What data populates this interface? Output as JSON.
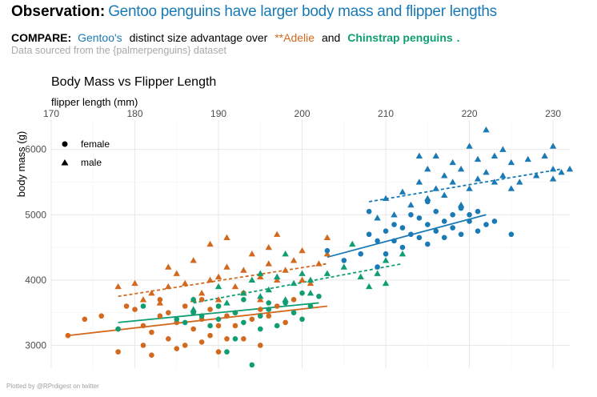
{
  "header": {
    "headline_lead": "Observation:",
    "headline_rest": "Gentoo penguins have larger body mass and flipper lengths",
    "compare_lead": "COMPARE:",
    "compare_gentoo": "Gentoo's",
    "compare_mid": "distinct size advantage over",
    "compare_adelie": "**Adelie",
    "compare_and": "and",
    "compare_chinstrap": "Chinstrap penguins",
    "compare_end": ".",
    "source": "Data sourced from the {palmerpenguins} dataset",
    "caption": "Plotted by @RPrdigest on twitter"
  },
  "colors": {
    "Adelie": "#d2691e",
    "Chinstrap": "#0f9e73",
    "Gentoo": "#1a7ab5"
  },
  "chart_data": {
    "type": "scatter",
    "title": "Body Mass vs Flipper Length",
    "xlabel": "flipper length (mm)",
    "ylabel": "body mass (g)",
    "x_axis_position": "top",
    "xlim": [
      170,
      232
    ],
    "ylim": [
      2650,
      6450
    ],
    "x_ticks": [
      170,
      180,
      190,
      200,
      210,
      220,
      230
    ],
    "y_ticks": [
      3000,
      4000,
      5000,
      6000
    ],
    "grid": true,
    "legend": {
      "placement": "top-left",
      "entries": [
        {
          "label": "female",
          "shape": "circle"
        },
        {
          "label": "male",
          "shape": "triangle"
        }
      ]
    },
    "trend_lines": [
      {
        "species": "Adelie",
        "sex": "female",
        "style": "solid",
        "x": [
          172,
          203
        ],
        "y": [
          3150,
          3600
        ]
      },
      {
        "species": "Adelie",
        "sex": "male",
        "style": "dashed",
        "x": [
          178,
          203
        ],
        "y": [
          3750,
          4250
        ]
      },
      {
        "species": "Chinstrap",
        "sex": "female",
        "style": "solid",
        "x": [
          178,
          202
        ],
        "y": [
          3350,
          3650
        ]
      },
      {
        "species": "Chinstrap",
        "sex": "male",
        "style": "dashed",
        "x": [
          187,
          212
        ],
        "y": [
          3650,
          4250
        ]
      },
      {
        "species": "Gentoo",
        "sex": "female",
        "style": "solid",
        "x": [
          203,
          222
        ],
        "y": [
          4350,
          5000
        ]
      },
      {
        "species": "Gentoo",
        "sex": "male",
        "style": "dashed",
        "x": [
          208,
          231
        ],
        "y": [
          5200,
          5700
        ]
      }
    ],
    "series": [
      {
        "species": "Adelie",
        "sex": "female",
        "points": [
          [
            172,
            3150
          ],
          [
            174,
            3400
          ],
          [
            176,
            3450
          ],
          [
            178,
            3250
          ],
          [
            178,
            2900
          ],
          [
            179,
            3600
          ],
          [
            180,
            3550
          ],
          [
            181,
            3000
          ],
          [
            181,
            3300
          ],
          [
            182,
            3200
          ],
          [
            182,
            2850
          ],
          [
            183,
            3450
          ],
          [
            183,
            3700
          ],
          [
            184,
            3100
          ],
          [
            184,
            3500
          ],
          [
            185,
            3350
          ],
          [
            185,
            2950
          ],
          [
            186,
            3600
          ],
          [
            186,
            3000
          ],
          [
            187,
            3250
          ],
          [
            187,
            3500
          ],
          [
            188,
            3050
          ],
          [
            188,
            3400
          ],
          [
            188,
            3700
          ],
          [
            189,
            3150
          ],
          [
            189,
            3550
          ],
          [
            190,
            3300
          ],
          [
            190,
            2900
          ],
          [
            190,
            3600
          ],
          [
            191,
            3450
          ],
          [
            191,
            3100
          ],
          [
            192,
            3300
          ],
          [
            192,
            3500
          ],
          [
            193,
            3100
          ],
          [
            193,
            3800
          ],
          [
            194,
            3400
          ],
          [
            195,
            3000
          ],
          [
            195,
            3550
          ],
          [
            196,
            3450
          ],
          [
            197,
            3600
          ],
          [
            198,
            3350
          ],
          [
            199,
            3700
          ]
        ]
      },
      {
        "species": "Adelie",
        "sex": "male",
        "points": [
          [
            178,
            3900
          ],
          [
            180,
            3950
          ],
          [
            181,
            3700
          ],
          [
            182,
            3800
          ],
          [
            183,
            3650
          ],
          [
            184,
            4200
          ],
          [
            184,
            3900
          ],
          [
            185,
            4100
          ],
          [
            186,
            3950
          ],
          [
            187,
            3700
          ],
          [
            187,
            4300
          ],
          [
            188,
            3800
          ],
          [
            189,
            4000
          ],
          [
            189,
            4550
          ],
          [
            190,
            4050
          ],
          [
            190,
            3700
          ],
          [
            191,
            4200
          ],
          [
            191,
            4650
          ],
          [
            192,
            3900
          ],
          [
            193,
            4150
          ],
          [
            193,
            3800
          ],
          [
            194,
            4400
          ],
          [
            195,
            4050
          ],
          [
            195,
            3700
          ],
          [
            196,
            4250
          ],
          [
            196,
            4500
          ],
          [
            197,
            4000
          ],
          [
            197,
            4700
          ],
          [
            198,
            4150
          ],
          [
            199,
            4300
          ],
          [
            200,
            4000
          ],
          [
            200,
            4450
          ],
          [
            201,
            3950
          ],
          [
            202,
            4250
          ],
          [
            203,
            4400
          ],
          [
            203,
            4650
          ]
        ]
      },
      {
        "species": "Chinstrap",
        "sex": "female",
        "points": [
          [
            178,
            3250
          ],
          [
            181,
            3600
          ],
          [
            185,
            3400
          ],
          [
            186,
            3350
          ],
          [
            187,
            3500
          ],
          [
            187,
            3700
          ],
          [
            188,
            3450
          ],
          [
            189,
            3300
          ],
          [
            190,
            3400
          ],
          [
            190,
            3600
          ],
          [
            191,
            2900
          ],
          [
            192,
            3100
          ],
          [
            192,
            3500
          ],
          [
            193,
            3350
          ],
          [
            193,
            3700
          ],
          [
            194,
            2700
          ],
          [
            195,
            3450
          ],
          [
            195,
            3250
          ],
          [
            196,
            3550
          ],
          [
            196,
            3650
          ],
          [
            197,
            3300
          ],
          [
            198,
            3650
          ],
          [
            199,
            3500
          ],
          [
            200,
            3400
          ],
          [
            200,
            3800
          ],
          [
            201,
            3600
          ],
          [
            202,
            3750
          ]
        ]
      },
      {
        "species": "Chinstrap",
        "sex": "male",
        "points": [
          [
            187,
            3550
          ],
          [
            190,
            3900
          ],
          [
            191,
            3650
          ],
          [
            193,
            3800
          ],
          [
            194,
            4000
          ],
          [
            195,
            3750
          ],
          [
            195,
            4100
          ],
          [
            196,
            3850
          ],
          [
            197,
            4050
          ],
          [
            198,
            3700
          ],
          [
            198,
            4400
          ],
          [
            199,
            3950
          ],
          [
            200,
            4100
          ],
          [
            201,
            3800
          ],
          [
            201,
            4000
          ],
          [
            203,
            4100
          ],
          [
            205,
            4200
          ],
          [
            206,
            4550
          ],
          [
            207,
            4050
          ],
          [
            208,
            3900
          ],
          [
            209,
            4100
          ],
          [
            210,
            3950
          ],
          [
            210,
            4300
          ],
          [
            212,
            4400
          ]
        ]
      },
      {
        "species": "Gentoo",
        "sex": "female",
        "points": [
          [
            203,
            4450
          ],
          [
            205,
            4300
          ],
          [
            207,
            4400
          ],
          [
            208,
            4700
          ],
          [
            208,
            5050
          ],
          [
            209,
            4600
          ],
          [
            209,
            4200
          ],
          [
            210,
            4750
          ],
          [
            210,
            4400
          ],
          [
            211,
            4600
          ],
          [
            211,
            4850
          ],
          [
            212,
            4500
          ],
          [
            212,
            4800
          ],
          [
            213,
            4700
          ],
          [
            213,
            5000
          ],
          [
            214,
            4650
          ],
          [
            214,
            4950
          ],
          [
            215,
            4550
          ],
          [
            215,
            4850
          ],
          [
            215,
            5200
          ],
          [
            216,
            4750
          ],
          [
            216,
            5050
          ],
          [
            217,
            4900
          ],
          [
            217,
            4650
          ],
          [
            218,
            4800
          ],
          [
            218,
            5000
          ],
          [
            219,
            4700
          ],
          [
            219,
            5100
          ],
          [
            220,
            4900
          ],
          [
            220,
            5000
          ],
          [
            221,
            4750
          ],
          [
            221,
            5050
          ],
          [
            222,
            4850
          ],
          [
            223,
            4900
          ],
          [
            225,
            4700
          ]
        ]
      },
      {
        "species": "Gentoo",
        "sex": "male",
        "points": [
          [
            209,
            4950
          ],
          [
            210,
            5250
          ],
          [
            211,
            5000
          ],
          [
            212,
            5350
          ],
          [
            213,
            5150
          ],
          [
            214,
            5500
          ],
          [
            214,
            5900
          ],
          [
            215,
            5250
          ],
          [
            215,
            5700
          ],
          [
            216,
            5400
          ],
          [
            216,
            5900
          ],
          [
            217,
            5300
          ],
          [
            217,
            5600
          ],
          [
            218,
            5500
          ],
          [
            218,
            5800
          ],
          [
            219,
            5150
          ],
          [
            219,
            5700
          ],
          [
            220,
            5400
          ],
          [
            220,
            6050
          ],
          [
            221,
            5550
          ],
          [
            221,
            5850
          ],
          [
            222,
            6300
          ],
          [
            222,
            5650
          ],
          [
            223,
            5500
          ],
          [
            223,
            5900
          ],
          [
            224,
            6000
          ],
          [
            224,
            5600
          ],
          [
            225,
            5800
          ],
          [
            225,
            5400
          ],
          [
            226,
            5500
          ],
          [
            227,
            5850
          ],
          [
            228,
            5600
          ],
          [
            229,
            5900
          ],
          [
            230,
            5700
          ],
          [
            230,
            6050
          ],
          [
            230,
            5550
          ],
          [
            231,
            5650
          ],
          [
            232,
            5700
          ]
        ]
      }
    ]
  }
}
